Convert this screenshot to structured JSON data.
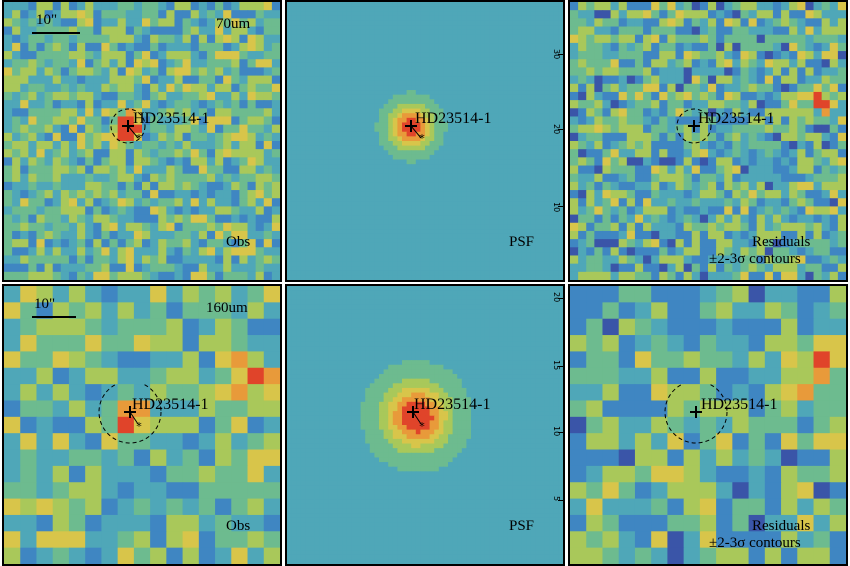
{
  "target_name": "HD23514-1",
  "scale_bar_label": "10\"",
  "rows": [
    {
      "band": "70um",
      "panels": [
        {
          "kind": "obs",
          "label": "Obs",
          "contour_note": ""
        },
        {
          "kind": "psf",
          "label": "PSF",
          "contour_note": ""
        },
        {
          "kind": "residual",
          "label": "Residuals",
          "contour_note": "±2-3σ contours"
        }
      ],
      "axis_ticks": [
        "30",
        "20",
        "10"
      ]
    },
    {
      "band": "160um",
      "panels": [
        {
          "kind": "obs",
          "label": "Obs",
          "contour_note": ""
        },
        {
          "kind": "psf",
          "label": "PSF",
          "contour_note": ""
        },
        {
          "kind": "residual",
          "label": "Residuals",
          "contour_note": "±2-3σ contours"
        }
      ],
      "axis_ticks": [
        "20",
        "15",
        "10",
        "5"
      ]
    }
  ],
  "colors": {
    "colormap": [
      "#5a2a8a",
      "#3a55a8",
      "#3f86c2",
      "#4fa7b8",
      "#6dbb8f",
      "#a9c85a",
      "#d8c54a",
      "#e89a3a",
      "#e0442a"
    ]
  }
}
